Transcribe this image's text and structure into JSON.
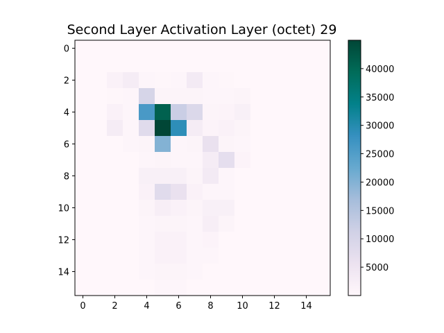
{
  "chart_data": {
    "type": "heatmap",
    "title": "Second Layer Activation Layer (octet) 29",
    "xlabel": "",
    "ylabel": "",
    "rows": 16,
    "cols": 16,
    "x_ticks": [
      0,
      2,
      4,
      6,
      8,
      10,
      12,
      14
    ],
    "y_ticks": [
      0,
      2,
      4,
      6,
      8,
      10,
      12,
      14
    ],
    "colorbar": {
      "colormap": "PuBuGn",
      "min": 0,
      "max": 45000,
      "ticks": [
        5000,
        10000,
        15000,
        20000,
        25000,
        30000,
        35000,
        40000
      ]
    },
    "values": [
      [
        0,
        0,
        0,
        0,
        0,
        0,
        0,
        0,
        0,
        0,
        0,
        0,
        0,
        0,
        0,
        0
      ],
      [
        0,
        0,
        0,
        0,
        0,
        0,
        0,
        0,
        0,
        0,
        0,
        0,
        0,
        0,
        0,
        0
      ],
      [
        0,
        0,
        1500,
        3000,
        500,
        300,
        500,
        3500,
        500,
        300,
        0,
        0,
        0,
        0,
        0,
        0
      ],
      [
        0,
        0,
        300,
        500,
        10000,
        800,
        800,
        800,
        500,
        500,
        800,
        0,
        0,
        0,
        0,
        0
      ],
      [
        0,
        0,
        1500,
        500,
        26000,
        41000,
        12000,
        9000,
        800,
        1000,
        2000,
        0,
        0,
        0,
        0,
        0
      ],
      [
        0,
        0,
        3000,
        500,
        8000,
        45000,
        29000,
        3000,
        1000,
        1500,
        800,
        0,
        0,
        0,
        0,
        0
      ],
      [
        0,
        0,
        0,
        500,
        800,
        20000,
        500,
        800,
        6000,
        800,
        500,
        0,
        0,
        0,
        0,
        0
      ],
      [
        0,
        0,
        0,
        0,
        500,
        800,
        500,
        500,
        3000,
        7000,
        1000,
        0,
        0,
        0,
        0,
        0
      ],
      [
        0,
        0,
        0,
        0,
        2000,
        2000,
        2000,
        800,
        3500,
        500,
        0,
        0,
        0,
        0,
        0,
        0
      ],
      [
        0,
        0,
        0,
        0,
        1500,
        8000,
        6000,
        1500,
        500,
        500,
        0,
        0,
        0,
        0,
        0,
        0
      ],
      [
        0,
        0,
        0,
        0,
        800,
        2500,
        1500,
        800,
        2000,
        2000,
        0,
        0,
        0,
        0,
        0,
        0
      ],
      [
        0,
        0,
        0,
        0,
        500,
        800,
        800,
        500,
        2500,
        800,
        0,
        0,
        0,
        0,
        0,
        0
      ],
      [
        0,
        0,
        0,
        0,
        500,
        1500,
        1500,
        500,
        1000,
        0,
        0,
        0,
        0,
        0,
        0,
        0
      ],
      [
        0,
        0,
        0,
        0,
        500,
        1500,
        1500,
        500,
        500,
        0,
        0,
        0,
        0,
        0,
        0,
        0
      ],
      [
        0,
        0,
        0,
        0,
        500,
        800,
        800,
        500,
        0,
        0,
        0,
        0,
        0,
        0,
        0,
        0
      ],
      [
        0,
        0,
        0,
        0,
        0,
        500,
        500,
        0,
        0,
        0,
        0,
        0,
        0,
        0,
        0,
        0
      ]
    ]
  }
}
